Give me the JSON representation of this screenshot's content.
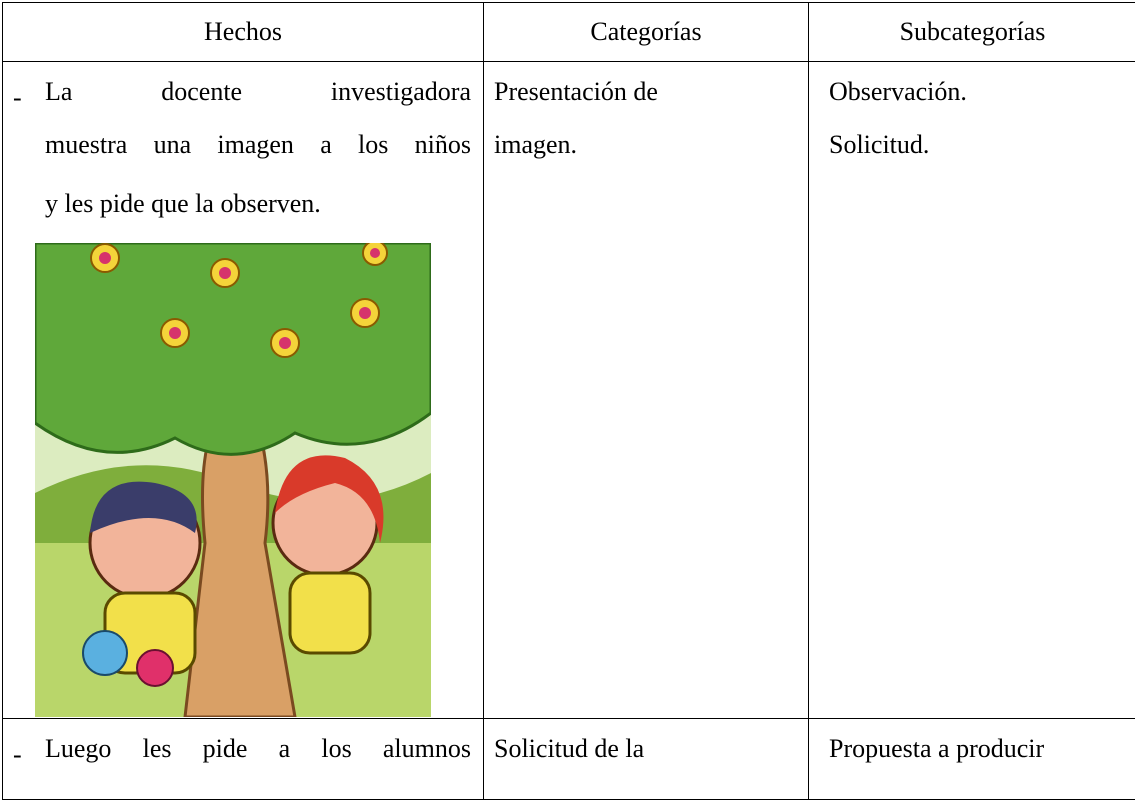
{
  "table": {
    "header": [
      "Hechos",
      "Categorías",
      "Subcategorías"
    ],
    "rows": [
      {
        "bullet": "-",
        "facts": [
          "La docente investigadora",
          "muestra una imagen a los niños",
          "y les pide que la observen."
        ],
        "category": [
          "Presentación de",
          "imagen."
        ],
        "subcategory": [
          "Observación.",
          "Solicitud."
        ]
      },
      {
        "bullet": "-",
        "facts": [
          "Luego les pide a los alumnos"
        ],
        "category": [
          "Solicitud de la"
        ],
        "subcategory": [
          "Propuesta a producir"
        ]
      }
    ]
  }
}
